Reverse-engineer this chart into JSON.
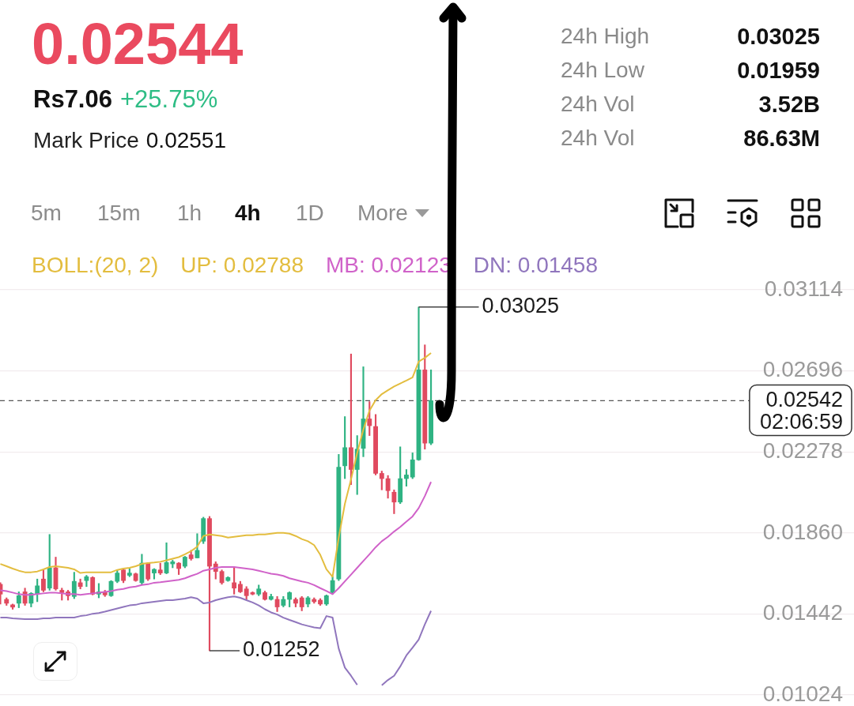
{
  "chart_data": {
    "type": "candlestick",
    "title": "0.02544",
    "annotations": [
      "Rs7.06",
      "+25.75%",
      "Mark Price",
      "0.02551",
      "24h High",
      "0.03025",
      "24h Low",
      "0.01959",
      "24h Vol",
      "3.52B",
      "24h Vol",
      "86.63M",
      "5m",
      "15m",
      "1h",
      "4h",
      "1D",
      "More",
      "0.02542",
      "02:06:59",
      "0.03025",
      "0.01252"
    ],
    "categories": [
      null,
      null,
      null,
      null,
      null,
      null,
      null,
      null,
      null,
      null,
      null,
      null,
      null,
      null,
      null,
      null,
      null,
      null,
      null,
      null,
      null,
      null,
      null,
      null,
      null,
      null,
      null,
      null,
      null,
      null,
      null,
      null,
      null,
      null,
      null,
      null,
      null,
      null,
      null,
      null,
      null,
      null,
      null,
      null,
      null,
      null,
      null,
      null,
      null,
      null,
      null,
      null,
      null,
      null,
      null,
      null,
      null,
      null,
      null,
      null,
      null,
      null,
      null,
      null,
      null,
      null,
      null,
      null,
      null,
      null,
      null
    ],
    "ohlc": [
      [
        0.01595,
        0.01603,
        0.01493,
        0.01544
      ],
      [
        0.01517,
        0.01525,
        0.01486,
        0.01497
      ],
      [
        0.01489,
        0.01493,
        0.01466,
        0.01477
      ],
      [
        0.01497,
        0.01556,
        0.01474,
        0.01536
      ],
      [
        0.01556,
        0.01575,
        0.01486,
        0.01497
      ],
      [
        0.01497,
        0.01552,
        0.01478,
        0.01548
      ],
      [
        0.01544,
        0.01622,
        0.01505,
        0.01587
      ],
      [
        0.01622,
        0.01669,
        0.01556,
        0.01564
      ],
      [
        0.01575,
        0.01852,
        0.01564,
        0.0168
      ],
      [
        0.0168,
        0.01735,
        0.01564,
        0.01571
      ],
      [
        0.01564,
        0.01575,
        0.01513,
        0.01552
      ],
      [
        0.01556,
        0.01564,
        0.01513,
        0.01536
      ],
      [
        0.01532,
        0.01657,
        0.01521,
        0.0161
      ],
      [
        0.01603,
        0.01622,
        0.01571,
        0.01583
      ],
      [
        0.01614,
        0.01641,
        0.01583,
        0.01634
      ],
      [
        0.0163,
        0.01634,
        0.0154,
        0.01544
      ],
      [
        0.01544,
        0.01599,
        0.01525,
        0.01556
      ],
      [
        0.01556,
        0.01564,
        0.01532,
        0.0154
      ],
      [
        0.01536,
        0.01614,
        0.01532,
        0.0161
      ],
      [
        0.0161,
        0.01669,
        0.01603,
        0.01653
      ],
      [
        0.01669,
        0.01672,
        0.01603,
        0.01614
      ],
      [
        0.01641,
        0.01676,
        0.01634,
        0.01653
      ],
      [
        0.01649,
        0.01653,
        0.0161,
        0.01614
      ],
      [
        0.01603,
        0.0175,
        0.01595,
        0.01704
      ],
      [
        0.01704,
        0.01707,
        0.01614,
        0.01622
      ],
      [
        0.01653,
        0.01676,
        0.01622,
        0.01672
      ],
      [
        0.01669,
        0.01704,
        0.01645,
        0.01653
      ],
      [
        0.01653,
        0.01809,
        0.01649,
        0.01707
      ],
      [
        0.017,
        0.01719,
        0.0168,
        0.01711
      ],
      [
        0.01704,
        0.01707,
        0.01645,
        0.01676
      ],
      [
        0.01688,
        0.01739,
        0.0168,
        0.01735
      ],
      [
        0.01747,
        0.0177,
        0.01719,
        0.01727
      ],
      [
        0.01731,
        0.01856,
        0.01731,
        0.0177
      ],
      [
        0.01817,
        0.01941,
        0.01805,
        0.01934
      ],
      [
        0.01934,
        0.01945,
        0.01252,
        0.01688
      ],
      [
        0.017,
        0.01711,
        0.01622,
        0.01661
      ],
      [
        0.01661,
        0.01669,
        0.01595,
        0.01603
      ],
      [
        0.01614,
        0.01634,
        0.0161,
        0.0163
      ],
      [
        0.01603,
        0.0168,
        0.01544,
        0.01575
      ],
      [
        0.01595,
        0.0161,
        0.01552,
        0.01556
      ],
      [
        0.01571,
        0.01583,
        0.01517,
        0.01536
      ],
      [
        0.01552,
        0.01556,
        0.0154,
        0.01544
      ],
      [
        0.01544,
        0.01591,
        0.01536,
        0.01571
      ],
      [
        0.01552,
        0.0156,
        0.01513,
        0.01517
      ],
      [
        0.01517,
        0.01544,
        0.01513,
        0.01532
      ],
      [
        0.01517,
        0.01532,
        0.01454,
        0.01478
      ],
      [
        0.01486,
        0.01532,
        0.01478,
        0.01517
      ],
      [
        0.01517,
        0.01556,
        0.01478,
        0.01552
      ],
      [
        0.01517,
        0.01525,
        0.01478,
        0.01497
      ],
      [
        0.01525,
        0.01532,
        0.01458,
        0.01478
      ],
      [
        0.01493,
        0.01532,
        0.01478,
        0.01525
      ],
      [
        0.01517,
        0.01525,
        0.01497,
        0.01505
      ],
      [
        0.01513,
        0.01521,
        0.01486,
        0.01493
      ],
      [
        0.01493,
        0.0154,
        0.01486,
        0.01536
      ],
      [
        0.01552,
        0.01634,
        0.01544,
        0.01614
      ],
      [
        0.01622,
        0.02265,
        0.01614,
        0.02199
      ],
      [
        0.02206,
        0.0246,
        0.0214,
        0.023
      ],
      [
        0.023,
        0.02783,
        0.02109,
        0.02187
      ],
      [
        0.02187,
        0.02362,
        0.02058,
        0.02292
      ],
      [
        0.02296,
        0.02717,
        0.02253,
        0.02448
      ],
      [
        0.02448,
        0.02537,
        0.02362,
        0.02413
      ],
      [
        0.02409,
        0.02471,
        0.02159,
        0.02167
      ],
      [
        0.02167,
        0.02179,
        0.02082,
        0.0214
      ],
      [
        0.0214,
        0.02156,
        0.02039,
        0.02078
      ],
      [
        0.0207,
        0.02082,
        0.01959,
        0.02019
      ],
      [
        0.02019,
        0.02304,
        0.02011,
        0.0214
      ],
      [
        0.0214,
        0.02187,
        0.02101,
        0.02159
      ],
      [
        0.02148,
        0.02273,
        0.0214,
        0.02237
      ],
      [
        0.02237,
        0.03025,
        0.02234,
        0.02701
      ],
      [
        0.02701,
        0.0283,
        0.02292,
        0.02323
      ],
      [
        0.02323,
        0.02701,
        0.02315,
        0.02542
      ]
    ],
    "colors": [
      "#e04a5f",
      "#e04a5f",
      "#e04a5f",
      "#2fb383",
      "#e04a5f",
      "#2fb383",
      "#2fb383",
      "#e04a5f",
      "#2fb383",
      "#e04a5f",
      "#e04a5f",
      "#e04a5f",
      "#2fb383",
      "#e04a5f",
      "#2fb383",
      "#e04a5f",
      "#2fb383",
      "#e04a5f",
      "#2fb383",
      "#2fb383",
      "#e04a5f",
      "#2fb383",
      "#e04a5f",
      "#2fb383",
      "#e04a5f",
      "#2fb383",
      "#e04a5f",
      "#2fb383",
      "#2fb383",
      "#e04a5f",
      "#2fb383",
      "#e04a5f",
      "#2fb383",
      "#2fb383",
      "#e04a5f",
      "#e04a5f",
      "#e04a5f",
      "#2fb383",
      "#e04a5f",
      "#e04a5f",
      "#e04a5f",
      "#e04a5f",
      "#2fb383",
      "#e04a5f",
      "#2fb383",
      "#e04a5f",
      "#2fb383",
      "#2fb383",
      "#e04a5f",
      "#e04a5f",
      "#2fb383",
      "#e04a5f",
      "#e04a5f",
      "#2fb383",
      "#2fb383",
      "#2fb383",
      "#2fb383",
      "#e04a5f",
      "#2fb383",
      "#2fb383",
      "#e04a5f",
      "#e04a5f",
      "#e04a5f",
      "#e04a5f",
      "#e04a5f",
      "#2fb383",
      "#2fb383",
      "#2fb383",
      "#2fb383",
      "#e04a5f",
      "#2fb383"
    ],
    "series": [
      {
        "name": "UP: 0.02788",
        "type": "line",
        "color": "#e3bd3f",
        "values": [
          0.017,
          0.01688,
          0.01676,
          0.01665,
          0.01657,
          0.01657,
          0.01661,
          0.01672,
          0.01684,
          0.01688,
          0.01684,
          0.0168,
          0.01672,
          0.01653,
          0.01657,
          0.01657,
          0.01657,
          0.01657,
          0.01657,
          0.01669,
          0.01676,
          0.0168,
          0.01688,
          0.017,
          0.01704,
          0.01707,
          0.01711,
          0.01719,
          0.01727,
          0.01735,
          0.0175,
          0.01766,
          0.01789,
          0.01844,
          0.01852,
          0.01848,
          0.01844,
          0.01836,
          0.0184,
          0.01844,
          0.01848,
          0.01848,
          0.01852,
          0.01852,
          0.01856,
          0.0186,
          0.0186,
          0.01856,
          0.01844,
          0.01828,
          0.01817,
          0.01797,
          0.01747,
          0.01672,
          0.01634,
          0.01836,
          0.0201,
          0.02136,
          0.02273,
          0.02393,
          0.02491,
          0.02545,
          0.02576,
          0.02596,
          0.02615,
          0.02631,
          0.02646,
          0.02662,
          0.02744,
          0.02763,
          0.02788
        ]
      },
      {
        "name": "MB: 0.02123",
        "type": "line",
        "color": "#d062c9",
        "values": [
          0.01564,
          0.0156,
          0.01552,
          0.01544,
          0.0154,
          0.0154,
          0.01544,
          0.01548,
          0.01552,
          0.01552,
          0.01548,
          0.01544,
          0.01544,
          0.0154,
          0.01544,
          0.01548,
          0.01552,
          0.01556,
          0.0156,
          0.01567,
          0.01571,
          0.01579,
          0.01583,
          0.01591,
          0.01595,
          0.01603,
          0.01606,
          0.0161,
          0.01614,
          0.01618,
          0.01626,
          0.01638,
          0.01649,
          0.01665,
          0.01672,
          0.0168,
          0.01684,
          0.01684,
          0.01684,
          0.0168,
          0.01676,
          0.01672,
          0.01665,
          0.01657,
          0.01649,
          0.01645,
          0.01638,
          0.01626,
          0.01618,
          0.0161,
          0.01603,
          0.01591,
          0.01575,
          0.0156,
          0.01544,
          0.01575,
          0.0161,
          0.01645,
          0.0168,
          0.01715,
          0.0175,
          0.01786,
          0.01817,
          0.0184,
          0.01867,
          0.01891,
          0.01918,
          0.01945,
          0.01988,
          0.0205,
          0.02123
        ]
      },
      {
        "name": "DN: 0.01458",
        "type": "line",
        "color": "#9076bd",
        "values": [
          0.01423,
          0.01423,
          0.01419,
          0.01417,
          0.01415,
          0.01415,
          0.01415,
          0.01419,
          0.01419,
          0.01423,
          0.01423,
          0.01423,
          0.01423,
          0.01431,
          0.01435,
          0.01443,
          0.01447,
          0.01454,
          0.01462,
          0.0147,
          0.01478,
          0.01486,
          0.01489,
          0.01497,
          0.01501,
          0.01505,
          0.01509,
          0.01513,
          0.01513,
          0.01517,
          0.01521,
          0.01528,
          0.01521,
          0.01497,
          0.01501,
          0.01513,
          0.01521,
          0.01528,
          0.01532,
          0.01525,
          0.01513,
          0.01501,
          0.01486,
          0.01466,
          0.0145,
          0.01439,
          0.01423,
          0.01411,
          0.014,
          0.01388,
          0.0138,
          0.01372,
          0.01368,
          0.01431,
          0.01423,
          0.01263,
          0.01165,
          0.01123,
          0.01076,
          null,
          null,
          null,
          0.01074,
          0.01101,
          0.01123,
          0.01171,
          0.01228,
          0.01268,
          0.0131,
          0.01388,
          0.01458
        ]
      }
    ],
    "legend": "top right",
    "legend_title": "BOLL:(20, 2)",
    "ylim": [
      0.01024,
      0.03114
    ],
    "yticks": [
      0.01024,
      0.01442,
      {
        "value": 0.0186,
        "label": "0.01860"
      },
      0.02278,
      0.02696,
      0.03114
    ],
    "ref_lines": [
      {
        "axis": "y",
        "value": 0.02542,
        "line_style": "dashed"
      }
    ],
    "grid": "y",
    "tick_labels": "y"
  }
}
